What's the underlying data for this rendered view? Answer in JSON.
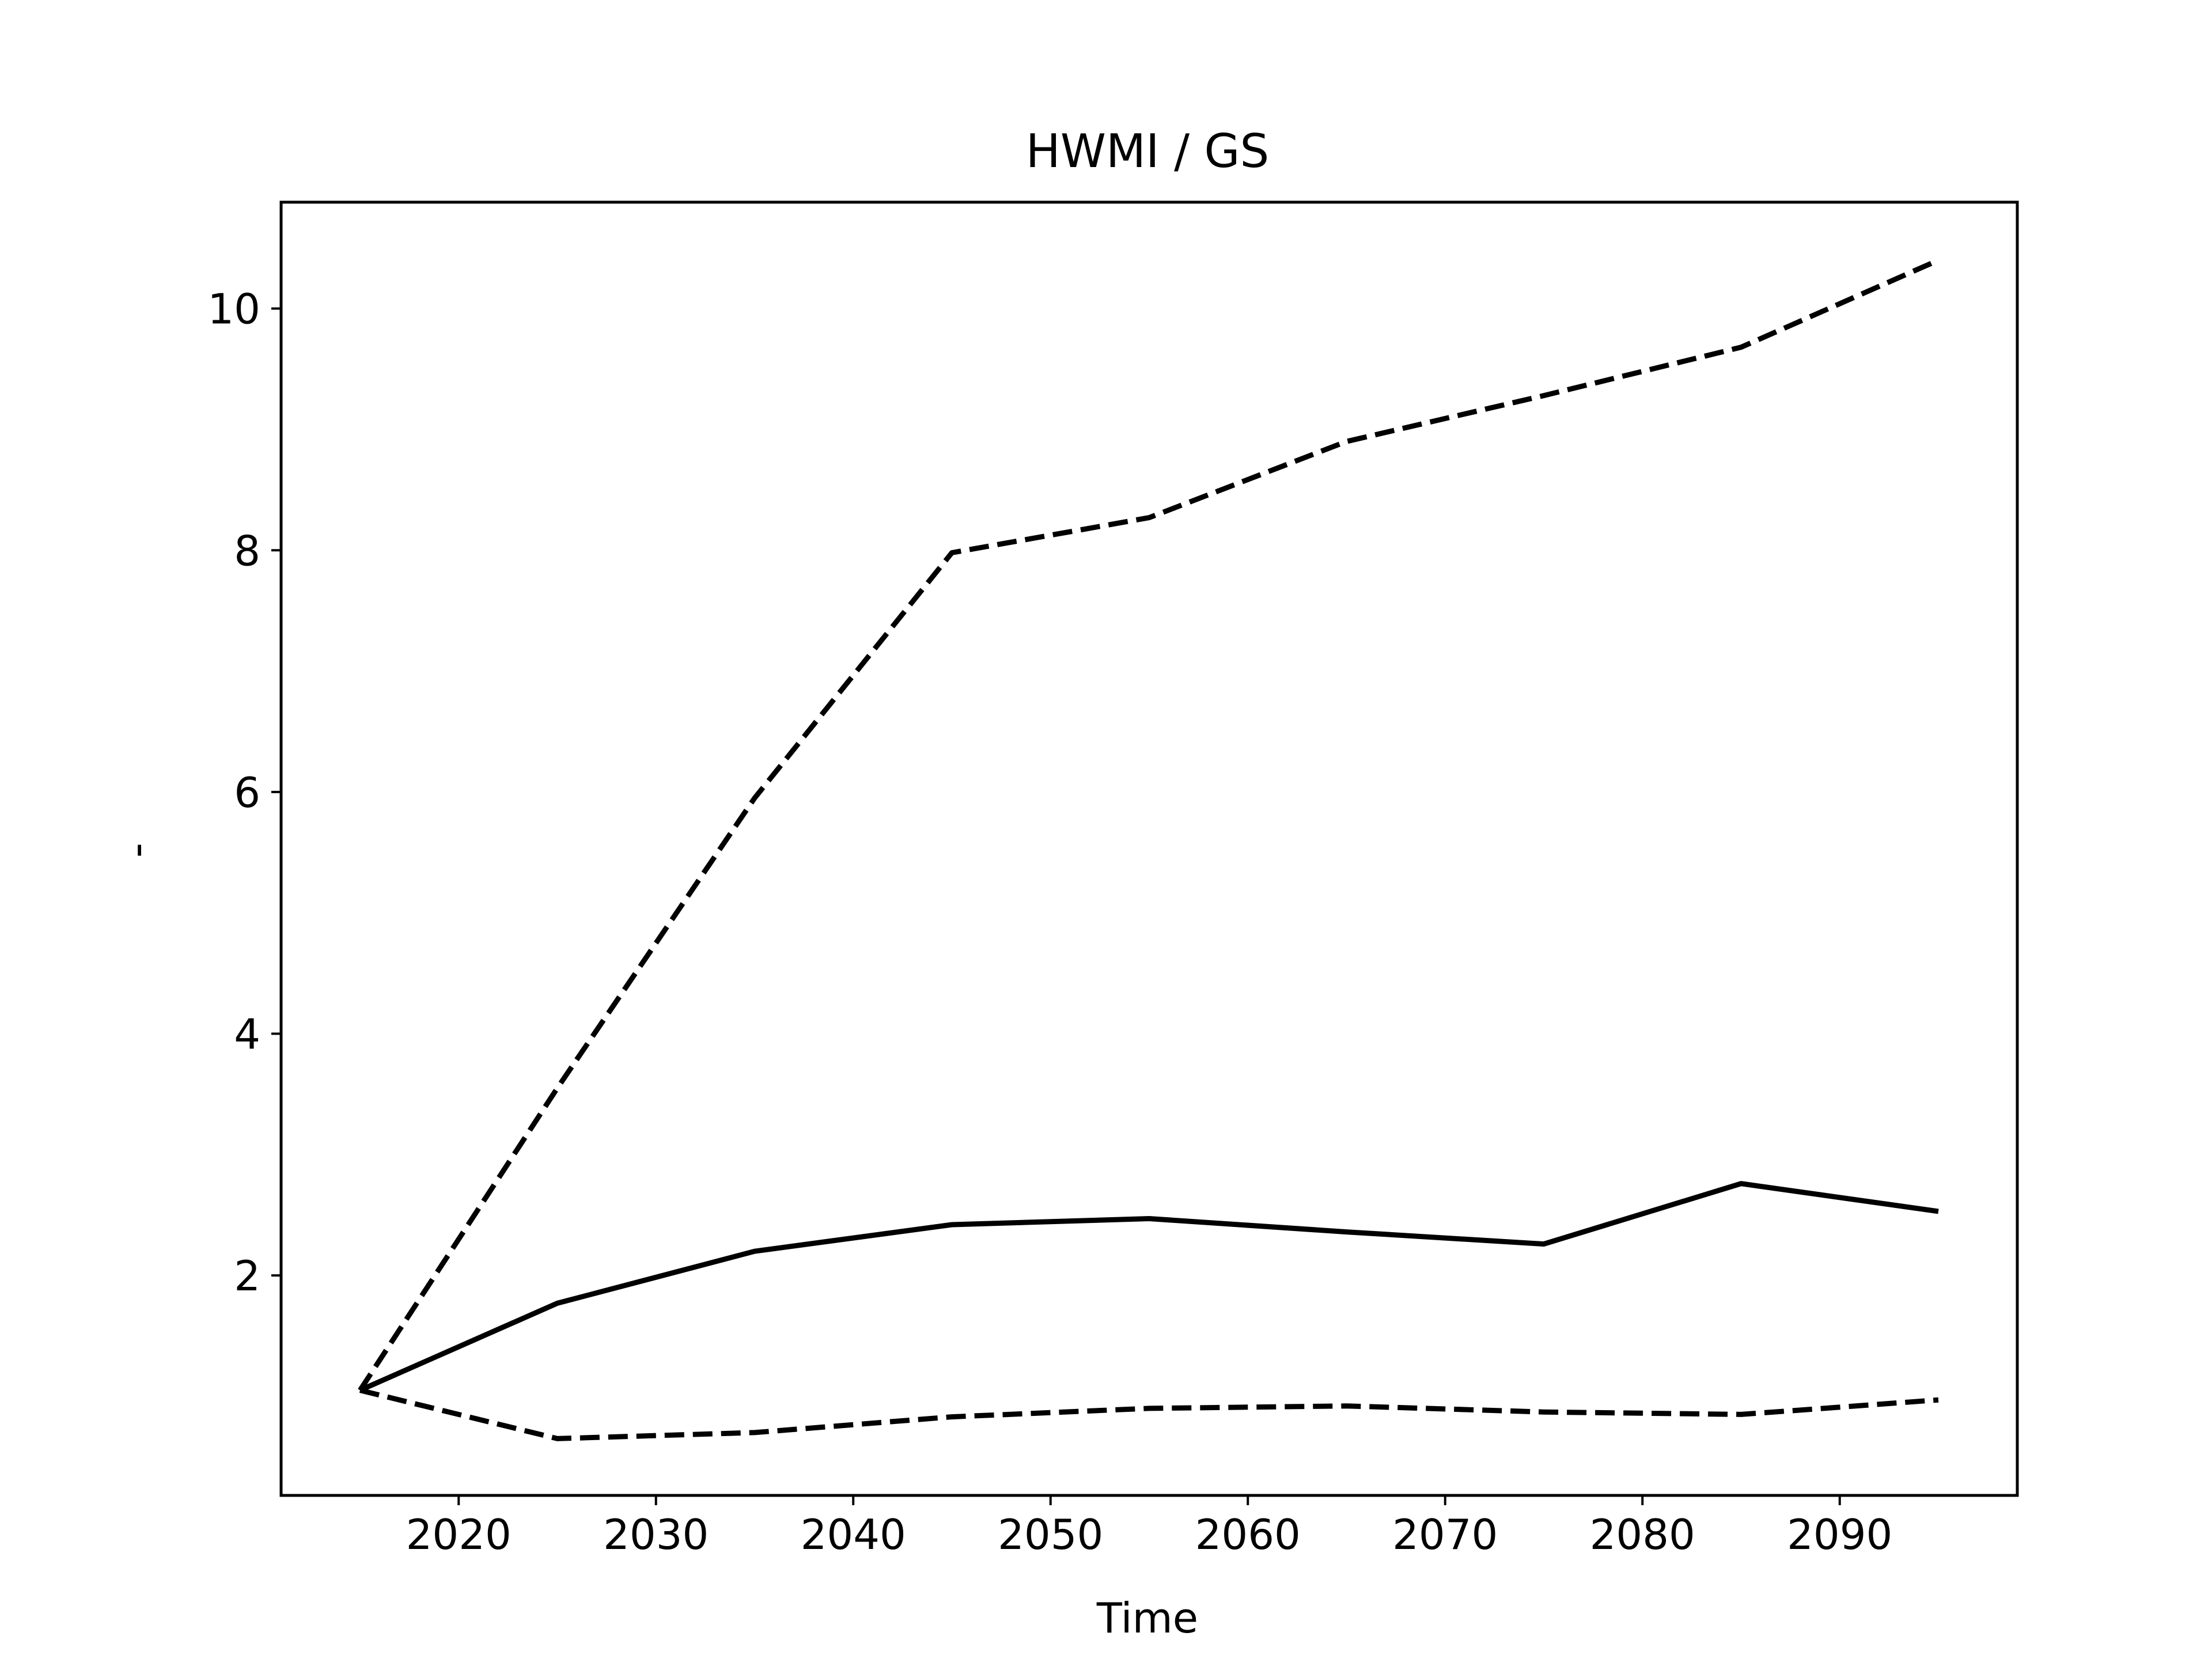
{
  "chart_data": {
    "type": "line",
    "title": "HWMI / GS",
    "xlabel": "Time",
    "ylabel": "-",
    "x": [
      2015,
      2025,
      2035,
      2045,
      2055,
      2065,
      2075,
      2085,
      2095
    ],
    "series": [
      {
        "style": "solid",
        "values": [
          1.05,
          1.77,
          2.2,
          2.42,
          2.47,
          2.36,
          2.26,
          2.76,
          2.53
        ]
      },
      {
        "style": "dashed",
        "values": [
          1.05,
          3.55,
          5.95,
          7.98,
          8.27,
          8.9,
          9.28,
          9.68,
          10.4
        ]
      },
      {
        "style": "dashed",
        "values": [
          1.05,
          0.65,
          0.7,
          0.83,
          0.9,
          0.92,
          0.87,
          0.85,
          0.97
        ]
      }
    ],
    "xticks": [
      2020,
      2030,
      2040,
      2050,
      2060,
      2070,
      2080,
      2090
    ],
    "yticks": [
      2,
      4,
      6,
      8,
      10
    ],
    "xlim": [
      2011,
      2099
    ],
    "ylim": [
      0.18,
      10.88
    ],
    "grid": false,
    "line_color": "#000000"
  }
}
